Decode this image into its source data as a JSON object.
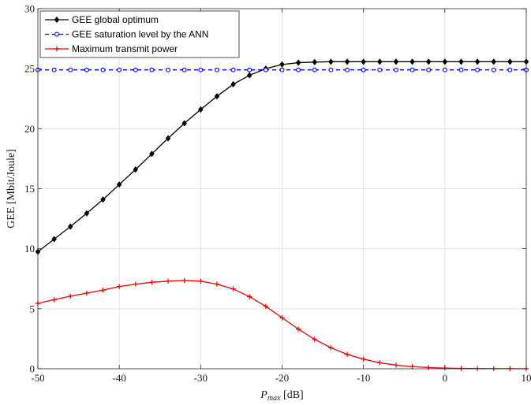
{
  "chart_data": {
    "type": "line",
    "xlabel_main": "P",
    "xlabel_sub": "max",
    "xlabel_unit": " [dB]",
    "ylabel": "GEE [Mbit/Joule]",
    "xlim": [
      -50,
      10
    ],
    "ylim": [
      0,
      30
    ],
    "xticks": [
      -50,
      -40,
      -30,
      -20,
      -10,
      0,
      10
    ],
    "yticks": [
      0,
      5,
      10,
      15,
      20,
      25,
      30
    ],
    "grid": true,
    "legend_position": "top-left",
    "x": [
      -50,
      -48,
      -46,
      -44,
      -42,
      -40,
      -38,
      -36,
      -34,
      -32,
      -30,
      -28,
      -26,
      -24,
      -22,
      -20,
      -18,
      -16,
      -14,
      -12,
      -10,
      -8,
      -6,
      -4,
      -2,
      0,
      2,
      4,
      6,
      8,
      10
    ],
    "series": [
      {
        "name": "GEE global optimum",
        "color": "#000000",
        "marker": "diamond",
        "linestyle": "solid",
        "values": [
          9.75,
          10.8,
          11.85,
          12.95,
          14.1,
          15.35,
          16.6,
          17.9,
          19.2,
          20.45,
          21.6,
          22.7,
          23.7,
          24.45,
          25.0,
          25.35,
          25.5,
          25.55,
          25.58,
          25.58,
          25.58,
          25.58,
          25.58,
          25.58,
          25.58,
          25.58,
          25.58,
          25.58,
          25.58,
          25.58,
          25.58
        ]
      },
      {
        "name": "GEE saturation level by the ANN",
        "color": "#0000ee",
        "marker": "circle",
        "linestyle": "dashed",
        "values": [
          24.9,
          24.9,
          24.9,
          24.9,
          24.9,
          24.9,
          24.9,
          24.9,
          24.9,
          24.9,
          24.9,
          24.9,
          24.9,
          24.9,
          24.9,
          24.9,
          24.9,
          24.9,
          24.9,
          24.9,
          24.9,
          24.9,
          24.9,
          24.9,
          24.9,
          24.9,
          24.9,
          24.9,
          24.9,
          24.9,
          24.9
        ]
      },
      {
        "name": "Maximum transmit power",
        "color": "#ee0000",
        "marker": "plus",
        "linestyle": "solid",
        "values": [
          5.45,
          5.75,
          6.05,
          6.3,
          6.55,
          6.85,
          7.05,
          7.2,
          7.3,
          7.35,
          7.3,
          7.05,
          6.65,
          6.0,
          5.2,
          4.25,
          3.3,
          2.45,
          1.75,
          1.2,
          0.8,
          0.5,
          0.3,
          0.18,
          0.1,
          0.06,
          0.03,
          0.02,
          0.01,
          0.01,
          0.0
        ]
      }
    ]
  }
}
